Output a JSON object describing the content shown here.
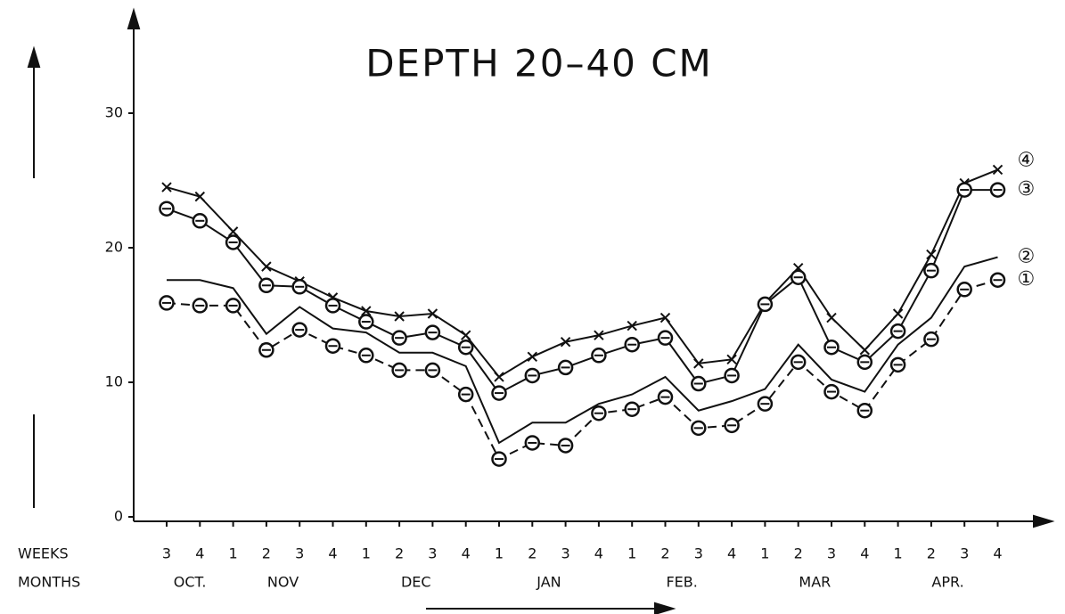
{
  "chart_data": {
    "type": "line",
    "title": "DEPTH 20–40 CM",
    "x_row_label": "WEEKS",
    "month_row_label": "MONTHS",
    "categories": [
      "3",
      "4",
      "1",
      "2",
      "3",
      "4",
      "1",
      "2",
      "3",
      "4",
      "1",
      "2",
      "3",
      "4",
      "1",
      "2",
      "3",
      "4",
      "1",
      "2",
      "3",
      "4",
      "1",
      "2",
      "3",
      "4"
    ],
    "months": [
      "OCT.",
      "NOV",
      "DEC",
      "JAN",
      "FEB.",
      "MAR",
      "APR."
    ],
    "ylim": [
      0,
      36
    ],
    "yticks": [
      0,
      10,
      20,
      30
    ],
    "series": [
      {
        "name": "④",
        "color": "#111111",
        "marker": "x",
        "dash": false,
        "values": [
          24.5,
          23.8,
          21.2,
          18.6,
          17.5,
          16.3,
          15.3,
          14.9,
          15.1,
          13.5,
          10.4,
          11.9,
          13.0,
          13.5,
          14.2,
          14.8,
          11.4,
          11.7,
          15.9,
          18.5,
          14.8,
          12.4,
          15.1,
          19.5,
          24.8,
          25.8
        ]
      },
      {
        "name": "③",
        "color": "#111111",
        "marker": "circle",
        "dash": false,
        "values": [
          22.9,
          22.0,
          20.4,
          17.2,
          17.1,
          15.7,
          14.5,
          13.3,
          13.7,
          12.6,
          9.2,
          10.5,
          11.1,
          12.0,
          12.8,
          13.3,
          9.9,
          10.5,
          15.8,
          17.8,
          12.6,
          11.5,
          13.8,
          18.3,
          24.3,
          24.3
        ]
      },
      {
        "name": "②",
        "color": "#111111",
        "marker": "none",
        "dash": false,
        "values": [
          17.6,
          17.6,
          17.0,
          13.6,
          15.6,
          14.0,
          13.7,
          12.2,
          12.2,
          11.2,
          5.5,
          7.0,
          7.0,
          8.4,
          9.1,
          10.4,
          7.9,
          8.6,
          9.5,
          12.8,
          10.2,
          9.3,
          12.8,
          14.8,
          18.6,
          19.3
        ]
      },
      {
        "name": "①",
        "color": "#111111",
        "marker": "circle",
        "dash": true,
        "values": [
          15.9,
          15.7,
          15.7,
          12.4,
          13.9,
          12.7,
          12.0,
          10.9,
          10.9,
          9.1,
          4.3,
          5.5,
          5.3,
          7.7,
          8.0,
          8.9,
          6.6,
          6.8,
          8.4,
          11.5,
          9.3,
          7.9,
          11.3,
          13.2,
          16.9,
          17.6
        ]
      }
    ]
  }
}
